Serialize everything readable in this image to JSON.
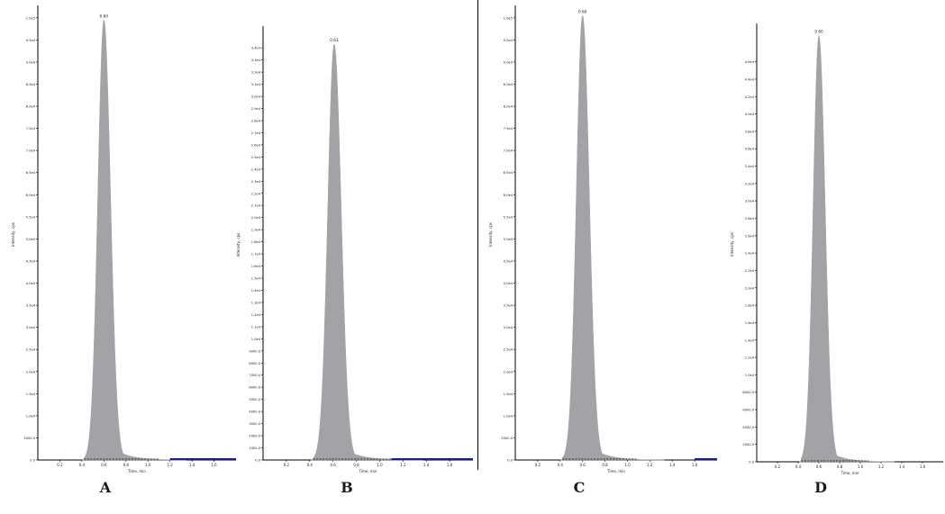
{
  "figure": {
    "panel_labels": [
      "A",
      "B",
      "C",
      "D"
    ],
    "fill_color": "#a3a3a7",
    "baseline_color": "#1a1aa8"
  },
  "chart_data": [
    {
      "type": "area",
      "panel": "A",
      "ylabel": "Intensity, cps",
      "xlabel": "Time, min",
      "peak_label": "0.60",
      "xlim": [
        0.0,
        1.8
      ],
      "xticks": [
        "0.2",
        "0.4",
        "0.6",
        "0.8",
        "1.0",
        "1.2",
        "1.4",
        "1.6"
      ],
      "ylim": [
        0,
        102000
      ],
      "yticks": [
        "0.0",
        "5000.0",
        "1.0e4",
        "1.5e4",
        "2.0e4",
        "2.5e4",
        "3.0e4",
        "3.5e4",
        "4.0e4",
        "4.5e4",
        "5.0e4",
        "5.5e4",
        "6.0e4",
        "6.5e4",
        "7.0e4",
        "7.5e4",
        "8.0e4",
        "8.5e4",
        "9.0e4",
        "9.5e4",
        "1.0e5"
      ],
      "peak": {
        "apex_time": 0.6,
        "height": 99500,
        "start": 0.42,
        "end": 1.1
      },
      "baseline_segment": [
        1.2,
        1.8
      ]
    },
    {
      "type": "area",
      "panel": "B",
      "ylabel": "Intensity, cps",
      "xlabel": "Time, min",
      "peak_label": "0.61",
      "xlim": [
        0.0,
        1.8
      ],
      "xticks": [
        "0.2",
        "0.4",
        "0.6",
        "0.8",
        "1.0",
        "1.2",
        "1.4",
        "1.6"
      ],
      "ylim": [
        0,
        35500
      ],
      "yticks": [
        "0.0",
        "1000.0",
        "2000.0",
        "3000.0",
        "4000.0",
        "5000.0",
        "6000.0",
        "7000.0",
        "8000.0",
        "9000.0",
        "1.0e4",
        "1.1e4",
        "1.2e4",
        "1.3e4",
        "1.4e4",
        "1.5e4",
        "1.6e4",
        "1.7e4",
        "1.8e4",
        "1.9e4",
        "2.0e4",
        "2.1e4",
        "2.2e4",
        "2.3e4",
        "2.4e4",
        "2.5e4",
        "2.6e4",
        "2.7e4",
        "2.8e4",
        "2.9e4",
        "3.0e4",
        "3.1e4",
        "3.2e4",
        "3.3e4",
        "3.4e4"
      ],
      "peak": {
        "apex_time": 0.61,
        "height": 34300,
        "start": 0.43,
        "end": 1.12
      },
      "baseline_segment": [
        1.1,
        1.8
      ]
    },
    {
      "type": "area",
      "panel": "C",
      "ylabel": "Intensity, cps",
      "xlabel": "Time, min",
      "peak_label": "0.60",
      "xlim": [
        0.0,
        1.8
      ],
      "xticks": [
        "0.2",
        "0.4",
        "0.6",
        "0.8",
        "1.0",
        "1.2",
        "1.4",
        "1.6"
      ],
      "ylim": [
        0,
        102000
      ],
      "yticks": [
        "0.0",
        "5000.0",
        "1.0e4",
        "1.5e4",
        "2.0e4",
        "2.5e4",
        "3.0e4",
        "3.5e4",
        "4.0e4",
        "4.5e4",
        "5.0e4",
        "5.5e4",
        "6.0e4",
        "6.5e4",
        "7.0e4",
        "7.5e4",
        "8.0e4",
        "8.5e4",
        "9.0e4",
        "9.5e4",
        "1.0e5"
      ],
      "peak": {
        "apex_time": 0.6,
        "height": 100500,
        "start": 0.42,
        "end": 1.08
      },
      "baseline_segment": [
        1.6,
        1.8
      ]
    },
    {
      "type": "area",
      "panel": "D",
      "ylabel": "Intensity, cps",
      "xlabel": "Time, min",
      "peak_label": "0.60",
      "xlim": [
        0.0,
        1.8
      ],
      "xticks": [
        "0.2",
        "0.4",
        "0.6",
        "0.8",
        "1.0",
        "1.2",
        "1.4",
        "1.6"
      ],
      "ylim": [
        0,
        50000
      ],
      "yticks": [
        "0.0",
        "2000.0",
        "4000.0",
        "6000.0",
        "8000.0",
        "1.0e4",
        "1.2e4",
        "1.4e4",
        "1.6e4",
        "1.8e4",
        "2.0e4",
        "2.2e4",
        "2.4e4",
        "2.6e4",
        "2.8e4",
        "3.0e4",
        "3.2e4",
        "3.4e4",
        "3.6e4",
        "3.8e4",
        "4.0e4",
        "4.2e4",
        "4.4e4",
        "4.6e4"
      ],
      "peak": {
        "apex_time": 0.6,
        "height": 49000,
        "start": 0.43,
        "end": 1.08
      },
      "baseline_segment": null
    }
  ]
}
